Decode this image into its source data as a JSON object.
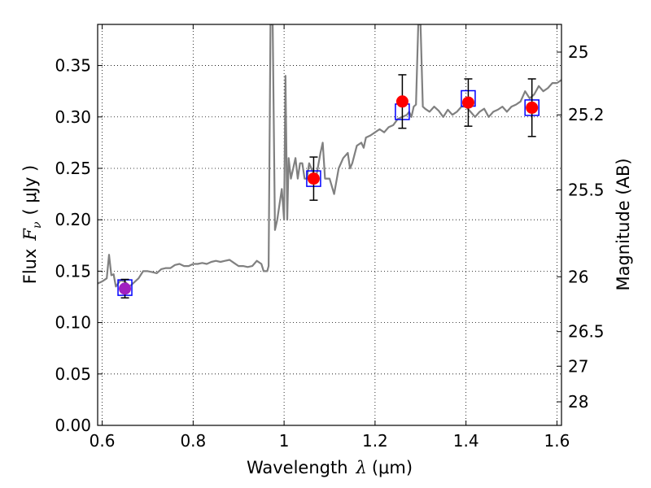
{
  "chart_data": {
    "type": "line",
    "xlabel_prefix": "Wavelength",
    "xlabel_unit": "(μm)",
    "ylabel_prefix": "Flux",
    "ylabel_unit": "( μJy )",
    "y2label": "Magnitude (AB)",
    "xlim": [
      0.59,
      1.61
    ],
    "ylim": [
      0.0,
      0.39
    ],
    "grid": true,
    "x_ticks": [
      {
        "value": 0.6,
        "label": "0.6"
      },
      {
        "value": 0.8,
        "label": "0.8"
      },
      {
        "value": 1.0,
        "label": "1"
      },
      {
        "value": 1.2,
        "label": "1.2"
      },
      {
        "value": 1.4,
        "label": "1.4"
      },
      {
        "value": 1.6,
        "label": "1.6"
      }
    ],
    "y_ticks": [
      {
        "value": 0.0,
        "label": "0.00"
      },
      {
        "value": 0.05,
        "label": "0.05"
      },
      {
        "value": 0.1,
        "label": "0.10"
      },
      {
        "value": 0.15,
        "label": "0.15"
      },
      {
        "value": 0.2,
        "label": "0.20"
      },
      {
        "value": 0.25,
        "label": "0.25"
      },
      {
        "value": 0.3,
        "label": "0.30"
      },
      {
        "value": 0.35,
        "label": "0.35"
      }
    ],
    "mag_ticks": [
      {
        "mag": 25,
        "label": "25"
      },
      {
        "mag": 25.2,
        "label": "25.2"
      },
      {
        "mag": 25.5,
        "label": "25.5"
      },
      {
        "mag": 26,
        "label": "26"
      },
      {
        "mag": 26.5,
        "label": "26.5"
      },
      {
        "mag": 27,
        "label": "27"
      },
      {
        "mag": 28,
        "label": "28"
      }
    ],
    "series": [
      {
        "style": "line",
        "color": "#808080",
        "x": [
          0.59,
          0.6,
          0.61,
          0.615,
          0.62,
          0.625,
          0.628,
          0.63,
          0.635,
          0.64,
          0.65,
          0.66,
          0.67,
          0.68,
          0.69,
          0.7,
          0.71,
          0.72,
          0.73,
          0.74,
          0.75,
          0.76,
          0.77,
          0.78,
          0.79,
          0.8,
          0.81,
          0.82,
          0.83,
          0.84,
          0.85,
          0.86,
          0.87,
          0.88,
          0.89,
          0.9,
          0.91,
          0.92,
          0.93,
          0.94,
          0.95,
          0.955,
          0.96,
          0.963,
          0.966,
          0.97,
          0.975,
          0.98,
          0.985,
          0.99,
          0.995,
          1.0,
          1.003,
          1.007,
          1.01,
          1.015,
          1.02,
          1.025,
          1.03,
          1.035,
          1.04,
          1.045,
          1.05,
          1.055,
          1.06,
          1.07,
          1.08,
          1.085,
          1.09,
          1.1,
          1.11,
          1.12,
          1.13,
          1.14,
          1.145,
          1.15,
          1.16,
          1.17,
          1.175,
          1.18,
          1.19,
          1.2,
          1.21,
          1.22,
          1.23,
          1.24,
          1.25,
          1.26,
          1.27,
          1.275,
          1.28,
          1.285,
          1.29,
          1.295,
          1.3,
          1.305,
          1.31,
          1.32,
          1.33,
          1.34,
          1.35,
          1.36,
          1.37,
          1.38,
          1.39,
          1.4,
          1.41,
          1.42,
          1.43,
          1.44,
          1.45,
          1.46,
          1.47,
          1.48,
          1.49,
          1.5,
          1.51,
          1.52,
          1.53,
          1.54,
          1.55,
          1.56,
          1.57,
          1.58,
          1.59,
          1.6,
          1.61
        ],
        "y": [
          0.138,
          0.14,
          0.143,
          0.166,
          0.146,
          0.147,
          0.14,
          0.135,
          0.138,
          0.141,
          0.14,
          0.135,
          0.139,
          0.143,
          0.15,
          0.15,
          0.149,
          0.148,
          0.152,
          0.153,
          0.153,
          0.156,
          0.157,
          0.155,
          0.155,
          0.157,
          0.157,
          0.158,
          0.157,
          0.159,
          0.16,
          0.159,
          0.16,
          0.161,
          0.158,
          0.155,
          0.155,
          0.154,
          0.155,
          0.16,
          0.157,
          0.15,
          0.15,
          0.15,
          0.155,
          0.39,
          0.39,
          0.19,
          0.2,
          0.215,
          0.23,
          0.2,
          0.34,
          0.2,
          0.26,
          0.24,
          0.25,
          0.26,
          0.24,
          0.255,
          0.255,
          0.24,
          0.24,
          0.255,
          0.25,
          0.24,
          0.265,
          0.275,
          0.24,
          0.24,
          0.225,
          0.25,
          0.26,
          0.265,
          0.25,
          0.255,
          0.272,
          0.275,
          0.27,
          0.28,
          0.282,
          0.285,
          0.288,
          0.285,
          0.29,
          0.292,
          0.298,
          0.3,
          0.302,
          0.305,
          0.3,
          0.31,
          0.312,
          0.39,
          0.39,
          0.31,
          0.308,
          0.305,
          0.31,
          0.306,
          0.3,
          0.307,
          0.302,
          0.305,
          0.31,
          0.31,
          0.305,
          0.3,
          0.305,
          0.308,
          0.3,
          0.305,
          0.307,
          0.31,
          0.305,
          0.31,
          0.312,
          0.315,
          0.325,
          0.318,
          0.322,
          0.33,
          0.325,
          0.328,
          0.333,
          0.333,
          0.336
        ]
      },
      {
        "style": "open-square",
        "color": "#0000ff",
        "x": [
          0.65,
          1.065,
          1.26,
          1.405,
          1.545
        ],
        "y": [
          0.134,
          0.24,
          0.305,
          0.318,
          0.309
        ]
      },
      {
        "style": "circle-errorbar",
        "color": "#ff0000",
        "x": [
          1.065,
          1.26,
          1.405,
          1.545
        ],
        "y": [
          0.24,
          0.315,
          0.314,
          0.309
        ],
        "yerr": [
          0.021,
          0.026,
          0.023,
          0.028
        ]
      },
      {
        "style": "circle-errorbar",
        "color": "#a020c0",
        "x": [
          0.65
        ],
        "y": [
          0.133
        ],
        "yerr": [
          0.009
        ]
      }
    ]
  }
}
